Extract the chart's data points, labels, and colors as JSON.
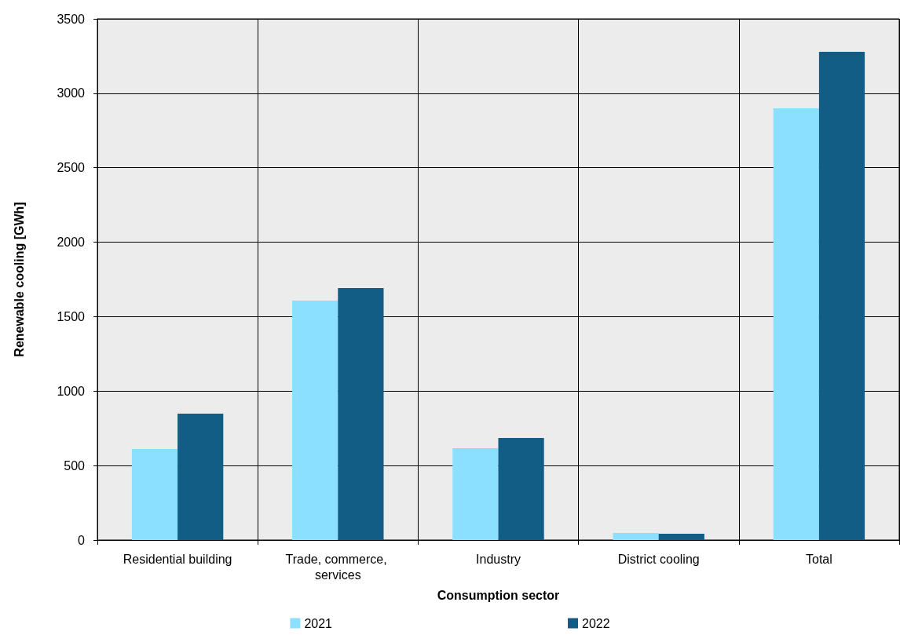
{
  "chart_data": {
    "type": "bar",
    "xlabel": "Consumption sector",
    "ylabel": "Renewable cooling [GWh]",
    "categories": [
      "Residential building",
      "Trade, commerce, services",
      "Industry",
      "District cooling",
      "Total"
    ],
    "series": [
      {
        "name": "2021",
        "color": "#8ae0fe",
        "values": [
          611,
          1608,
          617,
          47,
          2899
        ]
      },
      {
        "name": "2022",
        "color": "#125d86",
        "values": [
          849,
          1692,
          685,
          42,
          3279
        ]
      }
    ],
    "ylim": [
      0,
      3500
    ],
    "yticks": [
      0,
      500,
      1000,
      1500,
      2000,
      2500,
      3000,
      3500
    ],
    "grid": true,
    "legend": "bottom"
  }
}
